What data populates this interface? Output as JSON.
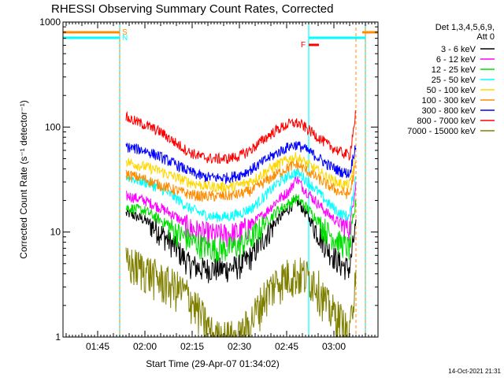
{
  "chart_data": {
    "type": "line",
    "title": "RHESSI Observing Summary Count Rates, Corrected",
    "xlabel": "Start Time (29-Apr-07 01:34:02)",
    "ylabel": "Corrected Count Rate (s⁻¹ detector⁻¹)",
    "yscale": "log",
    "ylim": [
      1,
      1000
    ],
    "xlim": [
      "01:34",
      "03:14"
    ],
    "x_tick_labels": [
      "01:45",
      "02:00",
      "02:15",
      "02:30",
      "02:45",
      "03:00"
    ],
    "y_tick_labels": [
      "1",
      "10",
      "100",
      "1000"
    ],
    "grid": false,
    "legend_header": [
      "Det 1,3,4,5,6,9,",
      "Att 0"
    ],
    "legend_position": "right",
    "x_sample_times": [
      "01:54",
      "01:55",
      "02:00",
      "02:05",
      "02:10",
      "02:14",
      "02:18",
      "02:22",
      "02:26",
      "02:30",
      "02:34",
      "02:38",
      "02:42",
      "02:46",
      "02:48",
      "02:50",
      "02:54",
      "02:58",
      "03:02",
      "03:05",
      "03:07"
    ],
    "series": [
      {
        "name": "3 - 6 keV",
        "color": "#000000",
        "values": [
          15,
          15,
          13,
          10,
          7,
          5,
          4.5,
          4.5,
          4.5,
          4.8,
          6,
          9,
          13,
          17,
          20,
          17,
          11,
          7,
          5,
          4.5,
          12
        ]
      },
      {
        "name": "6 - 12 keV",
        "color": "#ff00ff",
        "values": [
          22,
          22,
          20,
          17,
          14,
          11,
          10,
          9.5,
          9.5,
          10,
          12,
          15,
          20,
          25,
          33,
          27,
          20,
          15,
          12,
          11,
          30
        ]
      },
      {
        "name": "12 - 25 keV",
        "color": "#00dd00",
        "values": [
          17,
          17,
          16,
          13,
          10,
          8.5,
          7.5,
          7,
          7,
          7.5,
          9,
          12,
          16,
          19,
          21,
          19,
          14,
          10,
          8,
          7,
          20
        ]
      },
      {
        "name": "25 - 50 keV",
        "color": "#00ffff",
        "values": [
          34,
          33,
          30,
          26,
          21,
          17,
          15,
          14,
          14,
          15,
          17,
          22,
          29,
          35,
          37,
          34,
          26,
          19,
          15,
          14,
          35
        ]
      },
      {
        "name": "50 - 100 keV",
        "color": "#ffd700",
        "values": [
          48,
          46,
          42,
          38,
          33,
          30,
          28,
          27,
          27,
          28,
          31,
          37,
          44,
          50,
          52,
          48,
          40,
          33,
          29,
          28,
          55
        ]
      },
      {
        "name": "100 - 300 keV",
        "color": "#ff8c00",
        "values": [
          36,
          35,
          32,
          28,
          25,
          23,
          22,
          22,
          22,
          23,
          25,
          30,
          36,
          42,
          44,
          41,
          34,
          28,
          24,
          23,
          45
        ]
      },
      {
        "name": "300 - 800 keV",
        "color": "#0000ff",
        "values": [
          66,
          64,
          60,
          52,
          44,
          38,
          34,
          33,
          33,
          35,
          40,
          48,
          57,
          66,
          68,
          64,
          54,
          44,
          38,
          36,
          70
        ]
      },
      {
        "name": "800 - 7000 keV",
        "color": "#ff0000",
        "values": [
          125,
          120,
          105,
          90,
          70,
          58,
          52,
          50,
          50,
          53,
          62,
          78,
          95,
          108,
          110,
          104,
          85,
          68,
          58,
          54,
          140
        ]
      },
      {
        "name": "7000 - 15000 keV",
        "color": "#808000",
        "values": [
          5,
          5,
          4.5,
          3.5,
          3,
          2.5,
          1.6,
          1,
          1,
          1,
          1.5,
          2.5,
          3.5,
          4,
          4,
          4,
          3.5,
          2,
          1.5,
          1,
          5
        ]
      }
    ],
    "annotations": [
      {
        "label": "S",
        "color": "#ff8c00",
        "time": "01:52"
      },
      {
        "label": "N",
        "color": "#00ffff",
        "time": "01:52"
      },
      {
        "label": "F",
        "color": "#ff0000",
        "time": "02:53"
      }
    ],
    "boundary_markers": [
      {
        "kind": "saa",
        "color": "#ff8c00",
        "times": [
          "01:52",
          "03:07",
          "03:10"
        ]
      },
      {
        "kind": "night",
        "color": "#00ffff",
        "times": [
          "01:34",
          "01:52",
          "02:52",
          "03:10"
        ]
      }
    ],
    "footer_timestamp": "14-Oct-2021 21:31"
  }
}
